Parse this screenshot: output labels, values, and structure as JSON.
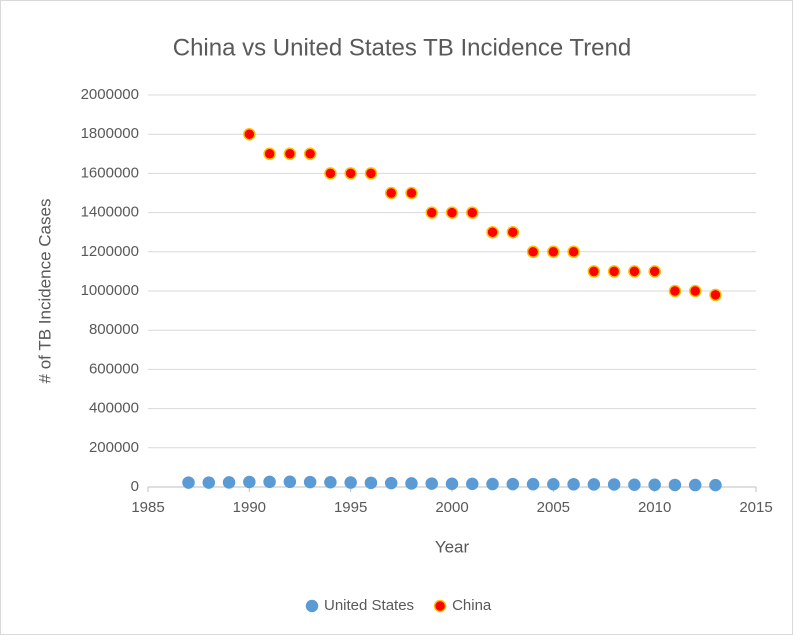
{
  "chart_data": {
    "type": "scatter",
    "title": "China vs United States TB Incidence Trend",
    "xlabel": "Year",
    "ylabel": "# of TB Incidence Cases",
    "series": [
      {
        "name": "United States",
        "color": "#5b9bd5",
        "edgecolor": "#5b9bd5",
        "x": [
          1987,
          1988,
          1989,
          1990,
          1991,
          1992,
          1993,
          1994,
          1995,
          1996,
          1997,
          1998,
          1999,
          2000,
          2001,
          2002,
          2003,
          2004,
          2005,
          2006,
          2007,
          2008,
          2009,
          2010,
          2011,
          2012,
          2013
        ],
        "values": [
          22517,
          22436,
          23495,
          25701,
          26283,
          26673,
          25102,
          24206,
          22727,
          21210,
          19751,
          18286,
          17500,
          16309,
          15945,
          15055,
          14836,
          14499,
          14065,
          13727,
          13270,
          12895,
          11520,
          11161,
          10509,
          9939,
          9582
        ]
      },
      {
        "name": "China",
        "color": "#ff0000",
        "edgecolor": "#ffc000",
        "x": [
          1990,
          1991,
          1992,
          1993,
          1994,
          1995,
          1996,
          1997,
          1998,
          1999,
          2000,
          2001,
          2002,
          2003,
          2004,
          2005,
          2006,
          2007,
          2008,
          2009,
          2010,
          2011,
          2012,
          2013
        ],
        "values": [
          1800000,
          1700000,
          1700000,
          1700000,
          1600000,
          1600000,
          1600000,
          1500000,
          1500000,
          1400000,
          1400000,
          1400000,
          1300000,
          1300000,
          1200000,
          1200000,
          1200000,
          1100000,
          1100000,
          1100000,
          1100000,
          1000000,
          1000000,
          980000
        ]
      }
    ],
    "xlim": [
      1985,
      2015
    ],
    "xticks": [
      1985,
      1990,
      1995,
      2000,
      2005,
      2010,
      2015
    ],
    "ylim": [
      0,
      2000000
    ],
    "yticks": [
      0,
      200000,
      400000,
      600000,
      800000,
      1000000,
      1200000,
      1400000,
      1600000,
      1800000,
      2000000
    ],
    "grid": true,
    "legend": "bottom"
  }
}
